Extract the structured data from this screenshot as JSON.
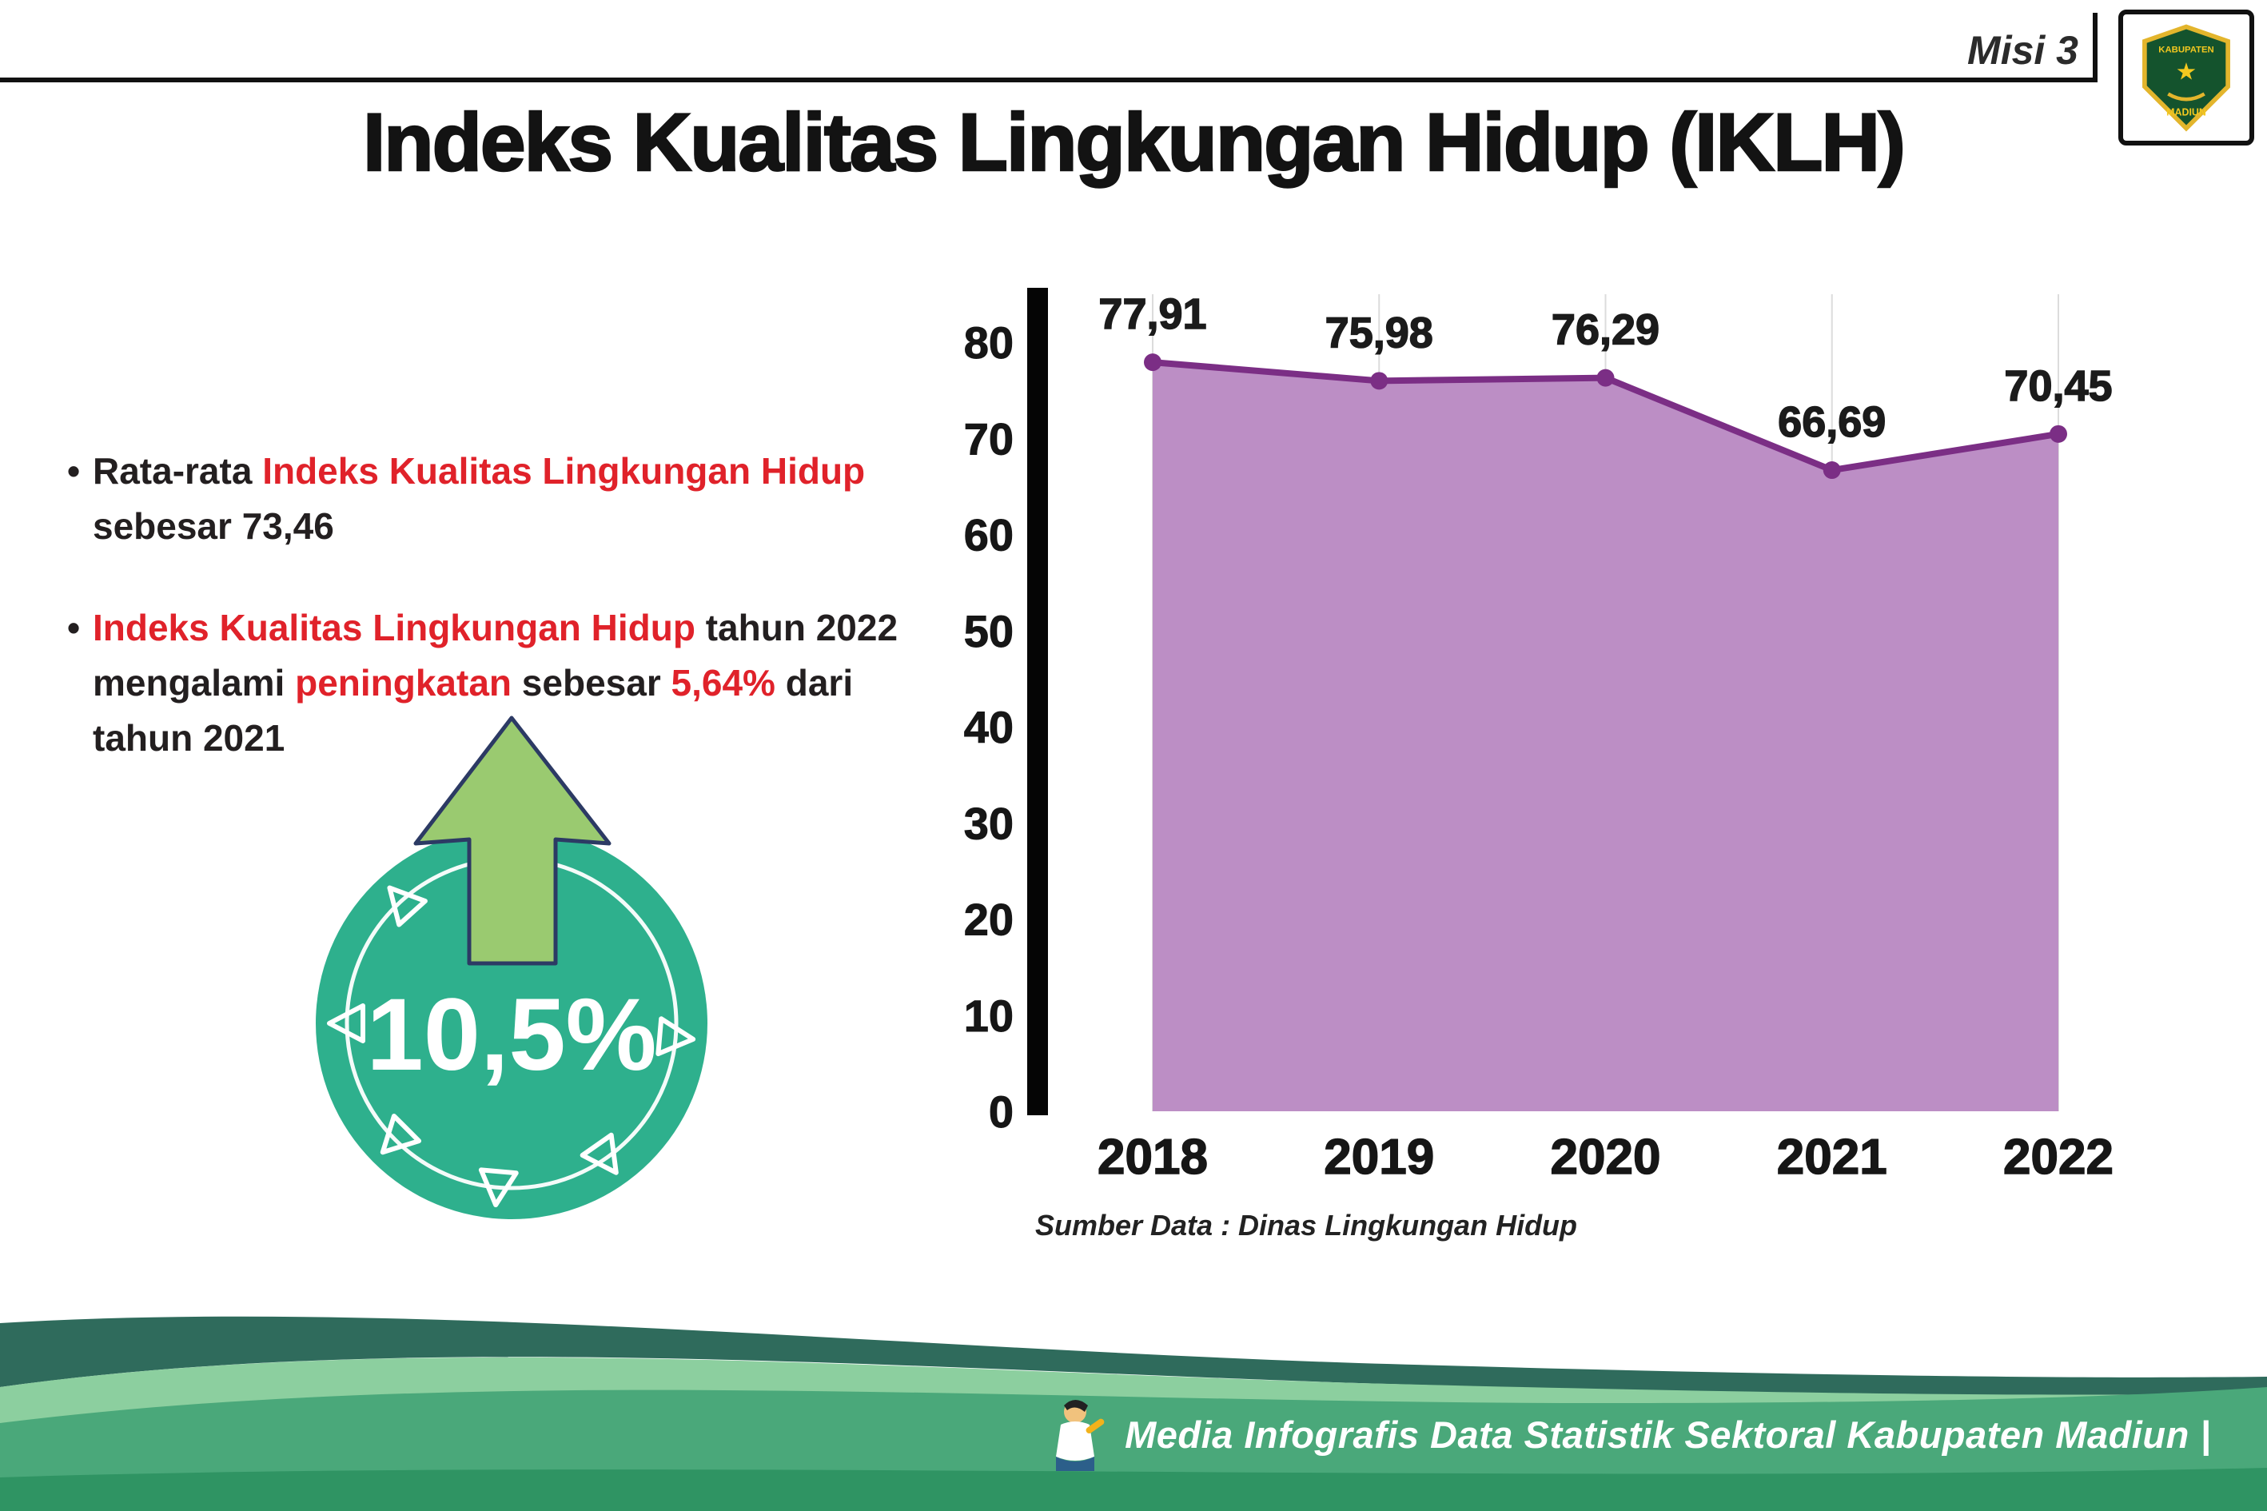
{
  "header": {
    "misi": "Misi 3",
    "title": "Indeks Kualitas Lingkungan Hidup (IKLH)"
  },
  "logo": {
    "line1": "KABUPATEN",
    "line2": "MADIUN"
  },
  "bullets": [
    {
      "segments": [
        {
          "text": "Rata-rata ",
          "color": "dark"
        },
        {
          "text": "Indeks Kualitas Lingkungan Hidup",
          "color": "red"
        },
        {
          "text": " sebesar 73,46",
          "color": "dark"
        }
      ]
    },
    {
      "segments": [
        {
          "text": "Indeks Kualitas Lingkungan Hidup",
          "color": "red"
        },
        {
          "text": " tahun 2022 mengalami ",
          "color": "dark"
        },
        {
          "text": "peningkatan",
          "color": "red"
        },
        {
          "text": " sebesar ",
          "color": "dark"
        },
        {
          "text": "5,64%",
          "color": "red"
        },
        {
          "text": " dari tahun 2021",
          "color": "dark"
        }
      ]
    }
  ],
  "badge": {
    "value": "10,5%",
    "circle_color": "#2eb08d",
    "arrow_color": "#9aca70",
    "arrow_outline": "#2c3a64"
  },
  "chart_data": {
    "type": "area",
    "categories": [
      "2018",
      "2019",
      "2020",
      "2021",
      "2022"
    ],
    "values": [
      77.91,
      75.98,
      76.29,
      66.69,
      70.45
    ],
    "point_labels": [
      "77,91",
      "75,98",
      "76,29",
      "66,69",
      "70,45"
    ],
    "ylim": [
      0,
      80
    ],
    "yticks": [
      0,
      10,
      20,
      30,
      40,
      50,
      60,
      70,
      80
    ],
    "grid": "vertical-light",
    "legend": "none",
    "area_color": "#bc8ec5",
    "line_color": "#7b2e85",
    "source": "Sumber Data : Dinas Lingkungan Hidup"
  },
  "footer": {
    "text": "Media Infografis Data Statistik Sektoral Kabupaten Madiun |"
  },
  "colors": {
    "accent_red": "#e0222a",
    "teal": "#2eb08d",
    "footer_dark": "#2f6b5c",
    "footer_light": "#8ccf9f",
    "footer_main": "#4aa87a"
  }
}
